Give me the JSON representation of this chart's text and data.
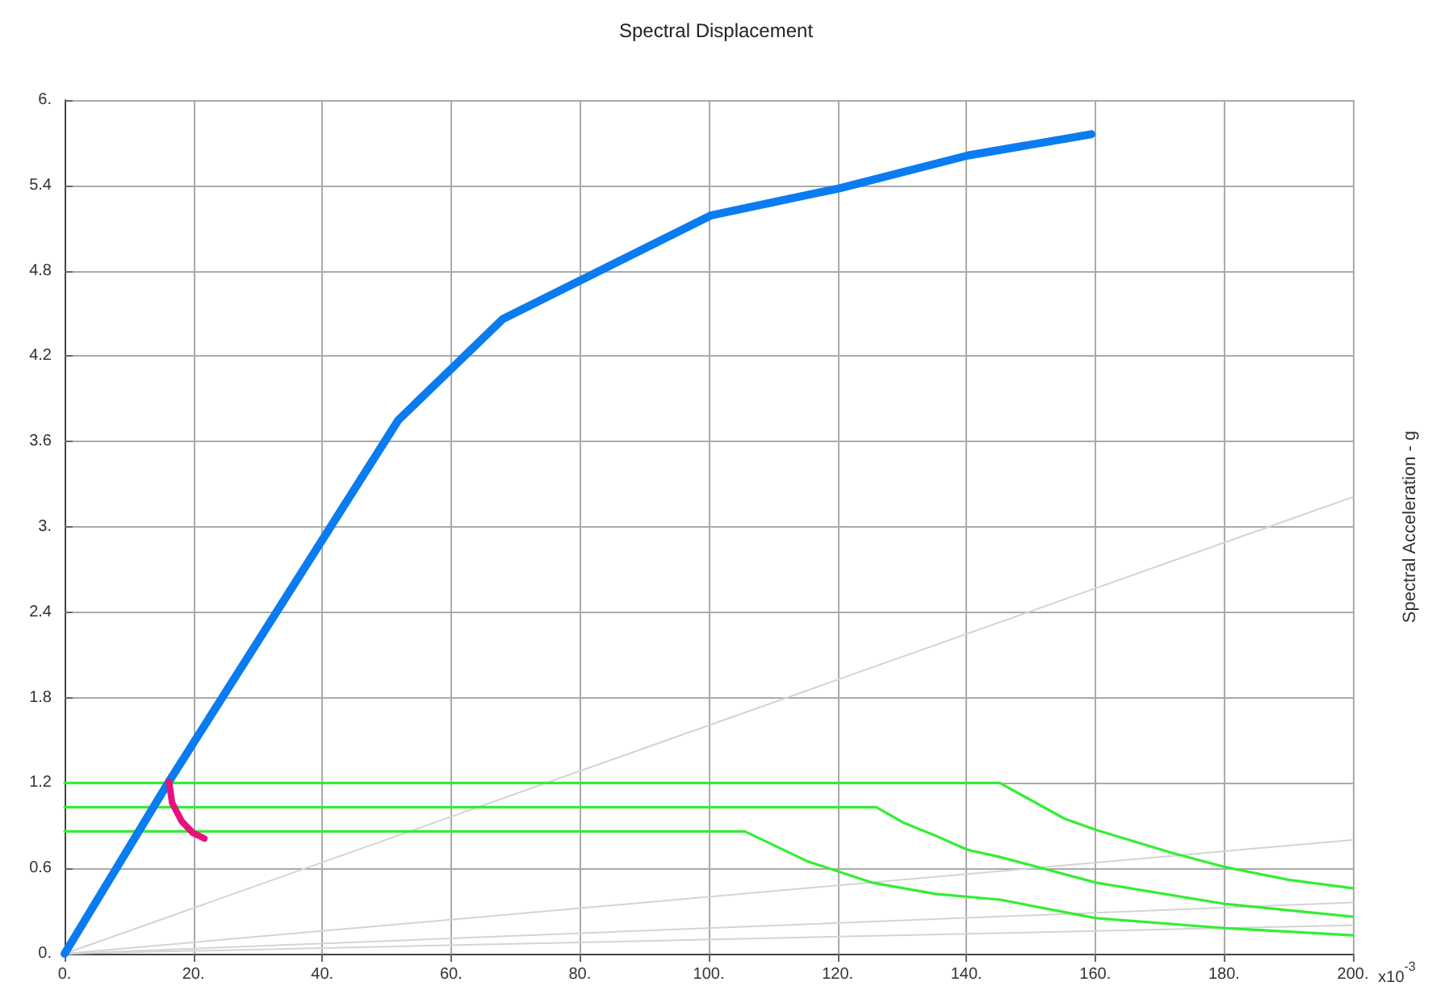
{
  "chart_data": {
    "type": "line",
    "title": "Spectral Displacement",
    "xlabel": "x10$^{-3}$",
    "y2label": "Spectral Acceleration - g",
    "xlim": [
      0,
      200
    ],
    "ylim": [
      0,
      6
    ],
    "xticks": [
      {
        "value": 0,
        "label": "0."
      },
      {
        "value": 20,
        "label": "20."
      },
      {
        "value": 40,
        "label": "40."
      },
      {
        "value": 60,
        "label": "60."
      },
      {
        "value": 80,
        "label": "80."
      },
      {
        "value": 100,
        "label": "100."
      },
      {
        "value": 120,
        "label": "120."
      },
      {
        "value": 140,
        "label": "140."
      },
      {
        "value": 160,
        "label": "160."
      },
      {
        "value": 180,
        "label": "180."
      },
      {
        "value": 200,
        "label": "200."
      }
    ],
    "yticks": [
      {
        "value": 0,
        "label": "0."
      },
      0.6,
      1.2,
      1.8,
      2.4,
      {
        "value": 3,
        "label": "3."
      },
      3.6,
      4.2,
      4.8,
      5.4,
      {
        "value": 6,
        "label": "6."
      }
    ],
    "tick_labels": "xy",
    "grid": true,
    "marker": "none",
    "line_style": "solid",
    "series": [
      {
        "color": "#d4d4d4",
        "x": [
          0,
          200
        ],
        "values": [
          0,
          3.21
        ]
      },
      {
        "color": "#d4d4d4",
        "x": [
          0,
          200
        ],
        "values": [
          0,
          0.8
        ]
      },
      {
        "color": "#d4d4d4",
        "x": [
          0,
          200
        ],
        "values": [
          0,
          0.36
        ]
      },
      {
        "color": "#d4d4d4",
        "x": [
          0,
          200
        ],
        "values": [
          0,
          0.2
        ]
      },
      {
        "color": "#33ee33",
        "x": [
          0,
          145.2,
          155.2,
          160.1,
          171.8,
          180.1,
          190,
          200
        ],
        "values": [
          1.2,
          1.2,
          0.95,
          0.87,
          0.71,
          0.61,
          0.52,
          0.46
        ]
      },
      {
        "color": "#33ee33",
        "x": [
          0,
          126,
          130.3,
          135.2,
          140.2,
          145.2,
          160.1,
          180.1,
          200
        ],
        "values": [
          1.03,
          1.03,
          0.92,
          0.83,
          0.73,
          0.68,
          0.5,
          0.35,
          0.26
        ]
      },
      {
        "color": "#33ee33",
        "x": [
          0,
          105.6,
          115.3,
          125.3,
          135.2,
          145.2,
          160.1,
          180.1,
          200
        ],
        "values": [
          0.86,
          0.86,
          0.65,
          0.5,
          0.42,
          0.38,
          0.25,
          0.18,
          0.13
        ]
      },
      {
        "color": "#0a7cf0",
        "x": [
          0,
          16.2,
          51.8,
          68,
          100.4,
          120.3,
          140.2,
          159.4
        ],
        "values": [
          0,
          1.21,
          3.75,
          4.46,
          5.19,
          5.38,
          5.61,
          5.76
        ]
      },
      {
        "color": "#e8107a",
        "x": [
          16.2,
          16.7,
          18.2,
          19.9,
          21.7
        ],
        "values": [
          1.21,
          1.06,
          0.93,
          0.85,
          0.81
        ]
      }
    ]
  }
}
